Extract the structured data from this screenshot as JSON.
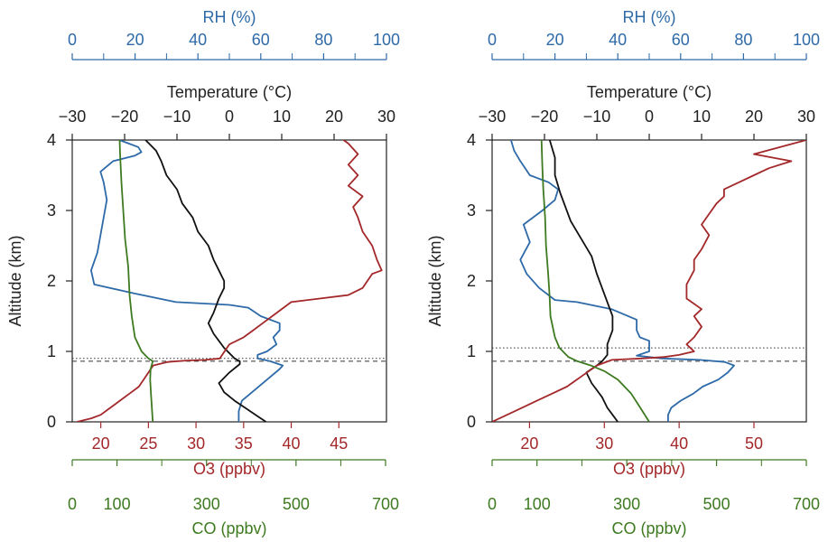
{
  "colors": {
    "rh": "#2e6aa8",
    "temperature": "#111111",
    "o3": "#a3282a",
    "co": "#3d7a20",
    "axis": "#222222"
  },
  "chart_data": [
    {
      "type": "line",
      "altitude_axis": {
        "label": "Altitude (km)",
        "range": [
          0,
          4
        ],
        "ticks": [
          0,
          1,
          2,
          3,
          4
        ]
      },
      "rh_axis": {
        "label": "RH (%)",
        "range": [
          0,
          100
        ],
        "ticks": [
          0,
          20,
          40,
          60,
          80,
          100
        ],
        "minor_ticks": [
          10,
          30,
          50,
          70,
          90
        ]
      },
      "temperature_axis": {
        "label": "Temperature (°C)",
        "range": [
          -30,
          30
        ],
        "ticks": [
          -30,
          -20,
          -10,
          0,
          10,
          20,
          30
        ]
      },
      "o3_axis": {
        "label": "O3 (ppbv)",
        "range": [
          17,
          50
        ],
        "ticks": [
          20,
          25,
          30,
          35,
          40,
          45
        ]
      },
      "co_axis": {
        "label": "CO (ppbv)",
        "range": [
          0,
          700
        ],
        "ticks": [
          0,
          100,
          300,
          500,
          700
        ],
        "minor_ticks": [
          200,
          400,
          600
        ]
      },
      "reference_lines": [
        {
          "altitude": 0.9,
          "style": "dotted"
        },
        {
          "altitude": 0.86,
          "style": "dashed"
        }
      ],
      "series": [
        {
          "key": "rh",
          "axis": "rh",
          "points": [
            [
              53,
              0
            ],
            [
              53,
              0.15
            ],
            [
              54,
              0.3
            ],
            [
              58,
              0.45
            ],
            [
              62,
              0.6
            ],
            [
              66,
              0.75
            ],
            [
              67,
              0.8
            ],
            [
              63,
              0.86
            ],
            [
              59,
              0.9
            ],
            [
              59,
              0.95
            ],
            [
              62,
              1.0
            ],
            [
              65,
              1.1
            ],
            [
              64,
              1.2
            ],
            [
              66,
              1.3
            ],
            [
              66,
              1.4
            ],
            [
              60,
              1.5
            ],
            [
              56,
              1.62
            ],
            [
              50,
              1.66
            ],
            [
              33,
              1.7
            ],
            [
              20,
              1.82
            ],
            [
              7,
              1.95
            ],
            [
              6,
              2.15
            ],
            [
              8,
              2.4
            ],
            [
              9,
              2.65
            ],
            [
              10,
              2.9
            ],
            [
              11,
              3.15
            ],
            [
              10,
              3.4
            ],
            [
              9,
              3.55
            ],
            [
              13,
              3.7
            ],
            [
              20,
              3.78
            ],
            [
              22,
              3.83
            ],
            [
              21,
              3.9
            ],
            [
              18,
              3.95
            ],
            [
              15,
              4.0
            ]
          ]
        },
        {
          "key": "temperature",
          "axis": "temperature",
          "points": [
            [
              7,
              0
            ],
            [
              5,
              0.1
            ],
            [
              3,
              0.2
            ],
            [
              1,
              0.3
            ],
            [
              -1,
              0.42
            ],
            [
              -2,
              0.55
            ],
            [
              0,
              0.7
            ],
            [
              2,
              0.82
            ],
            [
              2,
              0.86
            ],
            [
              1,
              0.9
            ],
            [
              -1,
              1.05
            ],
            [
              -2,
              1.15
            ],
            [
              -3,
              1.25
            ],
            [
              -4,
              1.4
            ],
            [
              -3,
              1.55
            ],
            [
              -2,
              1.75
            ],
            [
              -1,
              1.9
            ],
            [
              -1,
              2.0
            ],
            [
              -2,
              2.15
            ],
            [
              -3,
              2.3
            ],
            [
              -4,
              2.5
            ],
            [
              -6,
              2.7
            ],
            [
              -7,
              2.9
            ],
            [
              -9,
              3.1
            ],
            [
              -10,
              3.3
            ],
            [
              -12,
              3.5
            ],
            [
              -13,
              3.7
            ],
            [
              -14,
              3.85
            ],
            [
              -16,
              4.0
            ]
          ]
        },
        {
          "key": "o3",
          "axis": "o3",
          "points": [
            [
              17.5,
              0
            ],
            [
              19,
              0.05
            ],
            [
              20,
              0.1
            ],
            [
              21,
              0.2
            ],
            [
              22,
              0.3
            ],
            [
              23,
              0.4
            ],
            [
              24,
              0.5
            ],
            [
              24.5,
              0.6
            ],
            [
              25,
              0.7
            ],
            [
              25.5,
              0.8
            ],
            [
              27,
              0.85
            ],
            [
              29,
              0.87
            ],
            [
              31,
              0.88
            ],
            [
              32.5,
              0.9
            ],
            [
              33,
              1.0
            ],
            [
              33.5,
              1.1
            ],
            [
              35,
              1.2
            ],
            [
              36,
              1.3
            ],
            [
              37,
              1.4
            ],
            [
              38.5,
              1.55
            ],
            [
              40,
              1.7
            ],
            [
              43,
              1.75
            ],
            [
              46,
              1.8
            ],
            [
              47.5,
              1.9
            ],
            [
              48,
              2.0
            ],
            [
              48.5,
              2.1
            ],
            [
              49.5,
              2.15
            ],
            [
              49,
              2.3
            ],
            [
              48.5,
              2.5
            ],
            [
              47.5,
              2.7
            ],
            [
              47,
              2.9
            ],
            [
              46.5,
              3.05
            ],
            [
              47.5,
              3.2
            ],
            [
              46,
              3.35
            ],
            [
              47,
              3.5
            ],
            [
              46,
              3.65
            ],
            [
              47,
              3.8
            ],
            [
              46,
              3.95
            ],
            [
              45.5,
              4.0
            ]
          ]
        },
        {
          "key": "co",
          "axis": "co",
          "points": [
            [
              180,
              0
            ],
            [
              178,
              0.2
            ],
            [
              176,
              0.4
            ],
            [
              174,
              0.6
            ],
            [
              175,
              0.75
            ],
            [
              180,
              0.86
            ],
            [
              170,
              0.9
            ],
            [
              155,
              1.0
            ],
            [
              140,
              1.2
            ],
            [
              133,
              1.5
            ],
            [
              128,
              1.8
            ],
            [
              125,
              2.2
            ],
            [
              118,
              2.6
            ],
            [
              114,
              3.0
            ],
            [
              110,
              3.4
            ],
            [
              107,
              3.8
            ],
            [
              106,
              4.0
            ]
          ]
        }
      ]
    },
    {
      "type": "line",
      "altitude_axis": {
        "label": "Altitude (km)",
        "range": [
          0,
          4
        ],
        "ticks": [
          0,
          1,
          2,
          3,
          4
        ]
      },
      "rh_axis": {
        "label": "RH (%)",
        "range": [
          0,
          100
        ],
        "ticks": [
          0,
          20,
          40,
          60,
          80,
          100
        ],
        "minor_ticks": [
          10,
          30,
          50,
          70,
          90
        ]
      },
      "temperature_axis": {
        "label": "Temperature (°C)",
        "range": [
          -30,
          30
        ],
        "ticks": [
          -30,
          -20,
          -10,
          0,
          10,
          20,
          30
        ]
      },
      "o3_axis": {
        "label": "O3 (ppbv)",
        "range": [
          15,
          57
        ],
        "ticks": [
          20,
          30,
          40,
          50
        ]
      },
      "co_axis": {
        "label": "CO (ppbv)",
        "range": [
          0,
          700
        ],
        "ticks": [
          0,
          100,
          300,
          500,
          700
        ],
        "minor_ticks": [
          200,
          400,
          600
        ]
      },
      "reference_lines": [
        {
          "altitude": 1.05,
          "style": "dotted"
        },
        {
          "altitude": 0.86,
          "style": "dashed"
        }
      ],
      "series": [
        {
          "key": "rh",
          "axis": "rh",
          "points": [
            [
              56,
              0
            ],
            [
              56,
              0.1
            ],
            [
              57,
              0.2
            ],
            [
              60,
              0.3
            ],
            [
              64,
              0.4
            ],
            [
              67,
              0.5
            ],
            [
              72,
              0.6
            ],
            [
              75,
              0.7
            ],
            [
              77,
              0.8
            ],
            [
              74,
              0.85
            ],
            [
              66,
              0.88
            ],
            [
              54,
              0.9
            ],
            [
              46,
              0.94
            ],
            [
              50,
              1.0
            ],
            [
              50,
              1.15
            ],
            [
              47,
              1.2
            ],
            [
              46,
              1.3
            ],
            [
              46,
              1.45
            ],
            [
              38,
              1.6
            ],
            [
              27,
              1.7
            ],
            [
              20,
              1.73
            ],
            [
              15,
              1.9
            ],
            [
              11,
              2.1
            ],
            [
              9,
              2.3
            ],
            [
              12,
              2.55
            ],
            [
              10,
              2.8
            ],
            [
              16,
              3.0
            ],
            [
              20,
              3.15
            ],
            [
              21,
              3.3
            ],
            [
              18,
              3.4
            ],
            [
              12,
              3.5
            ],
            [
              9,
              3.7
            ],
            [
              7,
              3.85
            ],
            [
              6,
              4.0
            ]
          ]
        },
        {
          "key": "temperature",
          "axis": "temperature",
          "points": [
            [
              -6,
              0
            ],
            [
              -7,
              0.1
            ],
            [
              -8,
              0.2
            ],
            [
              -9,
              0.35
            ],
            [
              -10,
              0.45
            ],
            [
              -11,
              0.55
            ],
            [
              -12,
              0.7
            ],
            [
              -10,
              0.8
            ],
            [
              -9,
              0.86
            ],
            [
              -8,
              0.95
            ],
            [
              -8,
              1.1
            ],
            [
              -7,
              1.3
            ],
            [
              -7,
              1.5
            ],
            [
              -8,
              1.7
            ],
            [
              -9,
              1.9
            ],
            [
              -10,
              2.1
            ],
            [
              -11,
              2.35
            ],
            [
              -13,
              2.6
            ],
            [
              -15,
              2.85
            ],
            [
              -16,
              3.05
            ],
            [
              -17,
              3.25
            ],
            [
              -18,
              3.5
            ],
            [
              -18,
              3.75
            ],
            [
              -19,
              4.0
            ]
          ]
        },
        {
          "key": "o3",
          "axis": "o3",
          "points": [
            [
              15,
              0
            ],
            [
              16,
              0.05
            ],
            [
              17,
              0.1
            ],
            [
              19,
              0.2
            ],
            [
              21,
              0.3
            ],
            [
              23,
              0.4
            ],
            [
              25,
              0.5
            ],
            [
              27,
              0.65
            ],
            [
              29,
              0.8
            ],
            [
              31,
              0.88
            ],
            [
              35,
              0.9
            ],
            [
              38,
              0.92
            ],
            [
              40,
              0.95
            ],
            [
              42,
              1.0
            ],
            [
              41,
              1.1
            ],
            [
              42,
              1.2
            ],
            [
              43,
              1.35
            ],
            [
              42,
              1.5
            ],
            [
              43,
              1.6
            ],
            [
              41,
              1.75
            ],
            [
              41,
              1.95
            ],
            [
              42,
              2.15
            ],
            [
              42,
              2.3
            ],
            [
              43,
              2.45
            ],
            [
              44,
              2.65
            ],
            [
              43,
              2.8
            ],
            [
              44,
              2.95
            ],
            [
              45,
              3.1
            ],
            [
              46,
              3.2
            ],
            [
              46,
              3.3
            ],
            [
              48,
              3.4
            ],
            [
              50,
              3.5
            ],
            [
              52,
              3.6
            ],
            [
              55,
              3.7
            ],
            [
              50,
              3.8
            ],
            [
              57,
              4.0
            ]
          ]
        },
        {
          "key": "co",
          "axis": "co",
          "points": [
            [
              350,
              0
            ],
            [
              330,
              0.2
            ],
            [
              310,
              0.4
            ],
            [
              280,
              0.6
            ],
            [
              250,
              0.72
            ],
            [
              220,
              0.8
            ],
            [
              190,
              0.86
            ],
            [
              170,
              0.92
            ],
            [
              150,
              1.05
            ],
            [
              140,
              1.2
            ],
            [
              130,
              1.5
            ],
            [
              128,
              1.8
            ],
            [
              125,
              2.1
            ],
            [
              120,
              2.5
            ],
            [
              118,
              2.9
            ],
            [
              114,
              3.3
            ],
            [
              112,
              3.6
            ],
            [
              110,
              4.0
            ]
          ]
        }
      ]
    }
  ]
}
